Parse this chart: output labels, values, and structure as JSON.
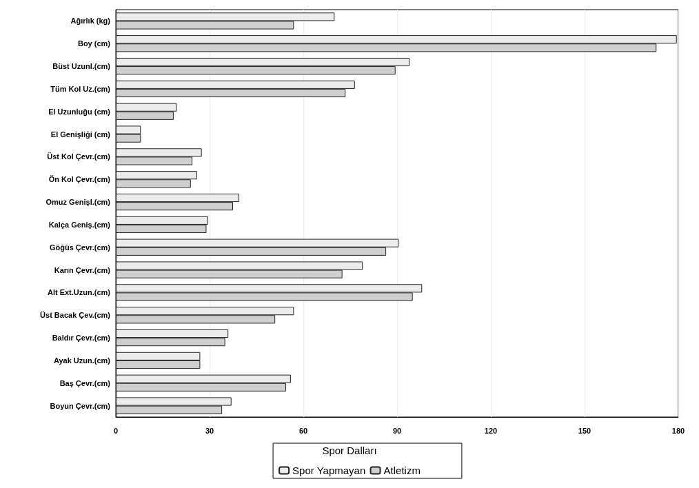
{
  "chart_data": {
    "type": "bar",
    "orientation": "horizontal",
    "categories": [
      "Ağırlık (kg)",
      "Boy (cm)",
      "Büst Uzunl.(cm)",
      "Tüm Kol Uz.(cm)",
      "El Uzunluğu (cm)",
      "El Genişliği (cm)",
      "Üst Kol Çevr.(cm)",
      "Ön Kol Çevr.(cm)",
      "Omuz Genişl.(cm)",
      "Kalça Geniş.(cm)",
      "Göğüs Çevr.(cm)",
      "Karın Çevr.(cm)",
      "Alt Ext.Uzun.(cm)",
      "Üst Bacak Çev.(cm)",
      "Baldır Çevr.(cm)",
      "Ayak Uzun.(cm)",
      "Baş Çevr.(cm)",
      "Boyun Çevr.(cm)"
    ],
    "series": [
      {
        "name": "Spor Yapmayan",
        "color": "#ececec",
        "values": [
          70,
          179.5,
          94,
          76.5,
          19.5,
          8,
          27.5,
          26,
          39.5,
          29.5,
          90.5,
          79,
          98,
          57,
          36,
          27,
          56,
          37
        ]
      },
      {
        "name": "Atletizm",
        "color": "#cfcfcf",
        "values": [
          57,
          173,
          89.5,
          73.5,
          18.5,
          8,
          24.5,
          24,
          37.5,
          29,
          86.5,
          72.5,
          95,
          51,
          35,
          27,
          54.5,
          34
        ]
      }
    ],
    "xlim": [
      0,
      180
    ],
    "xticks": [
      0,
      30,
      60,
      90,
      120,
      150,
      180
    ],
    "legend_title": "Spor Dalları",
    "legend": "bottom",
    "grid": "x"
  }
}
